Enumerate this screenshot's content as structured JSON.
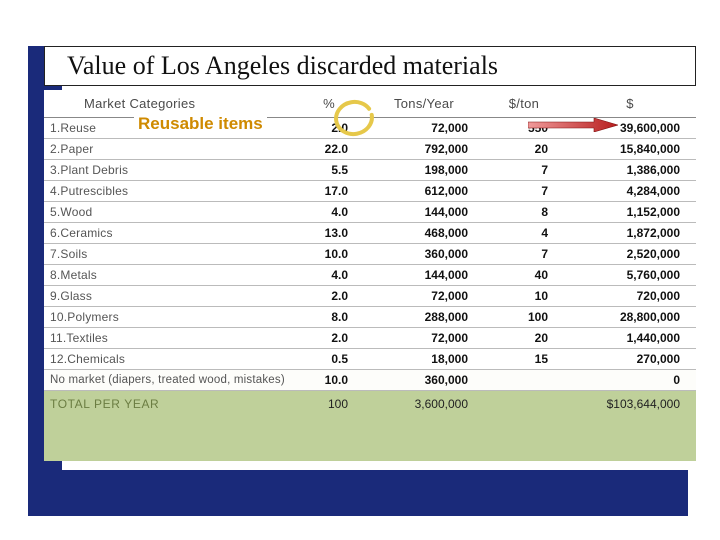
{
  "slide": {
    "title": "Value of Los Angeles discarded materials"
  },
  "annotation": {
    "reusable_label": "Reusable items"
  },
  "colors": {
    "navy": "#1a2a7a",
    "total_bg": "#bfd09a",
    "annotation_orange": "#cf8a00",
    "circle_stroke": "#e6c84a",
    "arrow_red": "#c62828",
    "text_dark": "#111111",
    "grid_line": "#bbbbbb"
  },
  "table": {
    "columns": [
      "Market Categories",
      "%",
      "Tons/Year",
      "$/ton",
      "$"
    ],
    "rows": [
      {
        "category": "1.Reuse",
        "percent": "2.0",
        "tons": "72,000",
        "rate": "550",
        "dollars": "39,600,000"
      },
      {
        "category": "2.Paper",
        "percent": "22.0",
        "tons": "792,000",
        "rate": "20",
        "dollars": "15,840,000"
      },
      {
        "category": "3.Plant Debris",
        "percent": "5.5",
        "tons": "198,000",
        "rate": "7",
        "dollars": "1,386,000"
      },
      {
        "category": "4.Putrescibles",
        "percent": "17.0",
        "tons": "612,000",
        "rate": "7",
        "dollars": "4,284,000"
      },
      {
        "category": "5.Wood",
        "percent": "4.0",
        "tons": "144,000",
        "rate": "8",
        "dollars": "1,152,000"
      },
      {
        "category": "6.Ceramics",
        "percent": "13.0",
        "tons": "468,000",
        "rate": "4",
        "dollars": "1,872,000"
      },
      {
        "category": "7.Soils",
        "percent": "10.0",
        "tons": "360,000",
        "rate": "7",
        "dollars": "2,520,000"
      },
      {
        "category": "8.Metals",
        "percent": "4.0",
        "tons": "144,000",
        "rate": "40",
        "dollars": "5,760,000"
      },
      {
        "category": "9.Glass",
        "percent": "2.0",
        "tons": "72,000",
        "rate": "10",
        "dollars": "720,000"
      },
      {
        "category": "10.Polymers",
        "percent": "8.0",
        "tons": "288,000",
        "rate": "100",
        "dollars": "28,800,000"
      },
      {
        "category": "11.Textiles",
        "percent": "2.0",
        "tons": "72,000",
        "rate": "20",
        "dollars": "1,440,000"
      },
      {
        "category": "12.Chemicals",
        "percent": "0.5",
        "tons": "18,000",
        "rate": "15",
        "dollars": "270,000"
      }
    ],
    "no_market_row": {
      "category": "No market (diapers, treated wood, mistakes)",
      "percent": "10.0",
      "tons": "360,000",
      "rate": "",
      "dollars": "0"
    },
    "total_row": {
      "label": "TOTAL PER YEAR",
      "percent": "100",
      "tons": "3,600,000",
      "rate": "",
      "dollars": "$103,644,000"
    }
  }
}
